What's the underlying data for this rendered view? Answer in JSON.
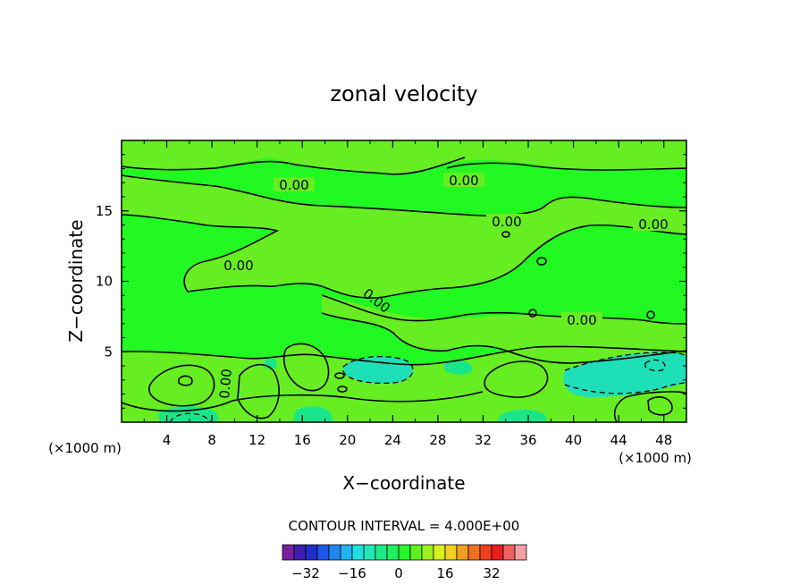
{
  "chart_data": {
    "type": "contour",
    "title": "zonal velocity",
    "xlabel": "X−coordinate",
    "ylabel": "Z−coordinate",
    "x_unit": "(×1000 m)",
    "y_unit": "(×1000 m)",
    "xlim": [
      0,
      50
    ],
    "ylim": [
      0,
      20
    ],
    "x_ticks": [
      4,
      8,
      12,
      16,
      20,
      24,
      28,
      32,
      36,
      40,
      44,
      48
    ],
    "y_ticks": [
      5,
      10,
      15
    ],
    "contour_labels": [
      "0.00",
      "0.00",
      "0.00",
      "0.00",
      "0.00",
      "0.00",
      "0.00",
      "0.00"
    ],
    "contour_interval_text": "CONTOUR INTERVAL = 4.000E+00",
    "colorbar": {
      "tick_values": [
        -32,
        -16,
        0,
        16,
        32
      ],
      "tick_labels": [
        "−32",
        "−16",
        "0",
        "16",
        "32"
      ],
      "colors": [
        "#7a1fa2",
        "#3a1fb0",
        "#1f2fc8",
        "#1f55e6",
        "#1f86f0",
        "#1fb4f0",
        "#1fe0e0",
        "#1fe8b4",
        "#1fe888",
        "#1ff060",
        "#22f828",
        "#60f020",
        "#a0f020",
        "#d8f020",
        "#f0d020",
        "#f0a020",
        "#f07020",
        "#f04020",
        "#e81f1f",
        "#f06060",
        "#f0a0a0"
      ]
    },
    "field_colors": {
      "zero": "#22f822",
      "pos": "#66ee22",
      "neg": "#19e68a",
      "neg2": "#1ee0b8"
    }
  }
}
